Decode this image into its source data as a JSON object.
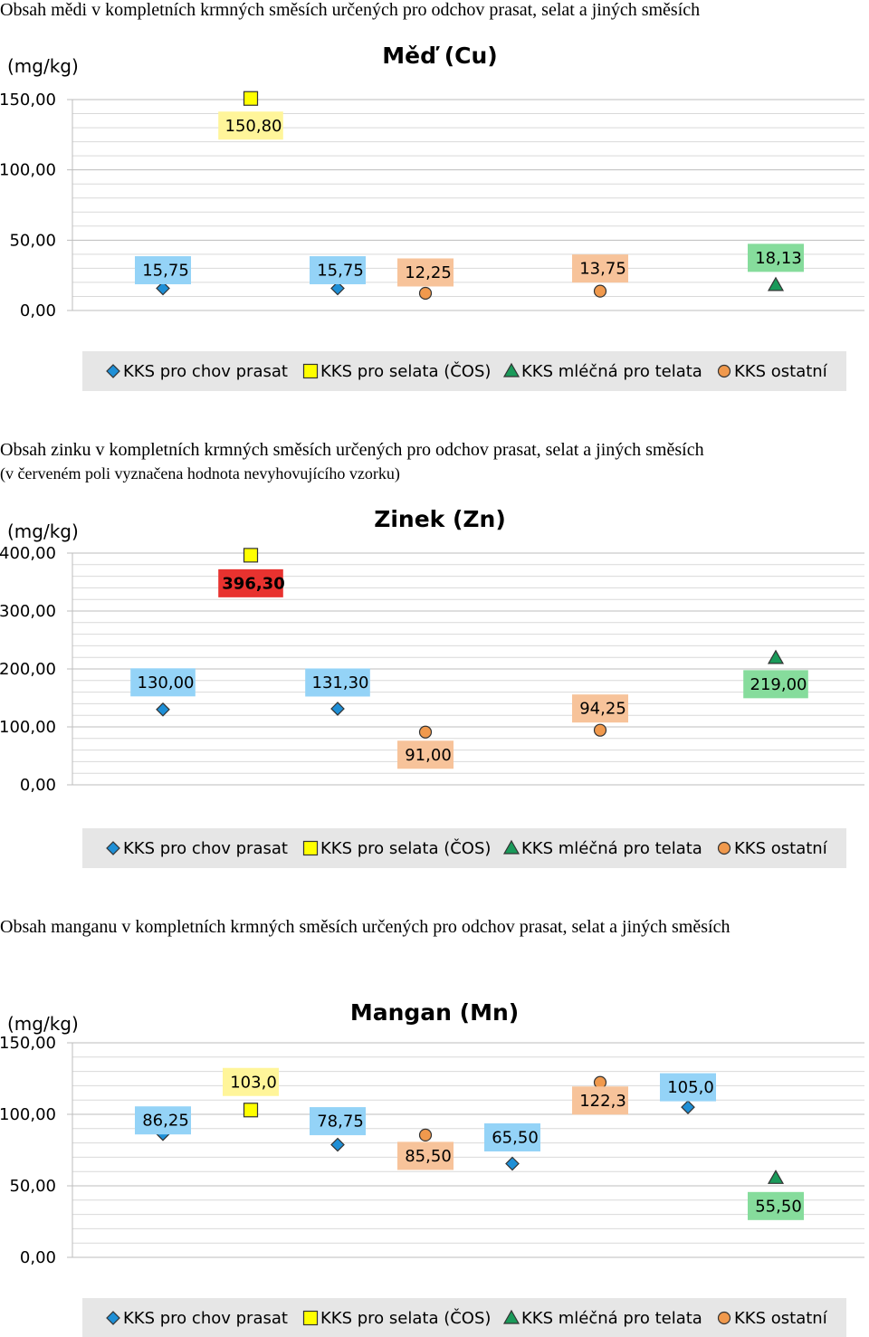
{
  "captions": {
    "cu": "Obsah mědi v kompletních krmných směsích určených pro odchov prasat, selat a jiných směsích",
    "zn": "Obsah zinku v kompletních krmných směsích určených pro odchov prasat, selat a jiných směsích",
    "zn_note": "(v červeném poli vyznačena hodnota nevyhovujícího vzorku)",
    "mn": "Obsah manganu v kompletních krmných směsích určených pro odchov prasat, selat a jiných směsích"
  },
  "colors": {
    "pig": "#1e8fd6",
    "piglet": "#ffff00",
    "calf": "#1a9a5a",
    "other": "#f0994d",
    "label_pig": "#94d3f7",
    "label_piglet": "#fff59a",
    "label_calf": "#86dc9c",
    "label_other": "#f7c39a",
    "label_bad": "#e8322f",
    "legend_bg": "#e6e6e6"
  },
  "legend": [
    {
      "key": "pig",
      "label": "KKS pro chov prasat",
      "marker": "diamond"
    },
    {
      "key": "piglet",
      "label": "KKS pro selata (ČOS)",
      "marker": "square"
    },
    {
      "key": "calf",
      "label": "KKS mléčná pro telata",
      "marker": "triangle"
    },
    {
      "key": "other",
      "label": "KKS  ostatní",
      "marker": "circle"
    }
  ],
  "chart_data": [
    {
      "id": "cu",
      "type": "scatter",
      "title": "Měď (Cu)",
      "ylabel": "(mg/kg)",
      "ylim": [
        0,
        150
      ],
      "yticks": [
        "0,00",
        "50,00",
        "100,00",
        "150,00"
      ],
      "points": [
        {
          "series": "pig",
          "x": 1,
          "y": 15.75,
          "label": "15,75"
        },
        {
          "series": "piglet",
          "x": 2,
          "y": 150.8,
          "label": "150,80"
        },
        {
          "series": "pig",
          "x": 3,
          "y": 15.75,
          "label": "15,75"
        },
        {
          "series": "other",
          "x": 4,
          "y": 12.25,
          "label": "12,25"
        },
        {
          "series": "other",
          "x": 6,
          "y": 13.75,
          "label": "13,75"
        },
        {
          "series": "calf",
          "x": 8,
          "y": 18.13,
          "label": "18,13"
        }
      ]
    },
    {
      "id": "zn",
      "type": "scatter",
      "title": "Zinek (Zn)",
      "ylabel": "(mg/kg)",
      "ylim": [
        0,
        400
      ],
      "yticks": [
        "0,00",
        "100,00",
        "200,00",
        "300,00",
        "400,00"
      ],
      "points": [
        {
          "series": "pig",
          "x": 1,
          "y": 130,
          "label": "130,00"
        },
        {
          "series": "piglet",
          "x": 2,
          "y": 396.3,
          "label": "396,30",
          "bad": true
        },
        {
          "series": "pig",
          "x": 3,
          "y": 131.3,
          "label": "131,30"
        },
        {
          "series": "other",
          "x": 4,
          "y": 91,
          "label": "91,00"
        },
        {
          "series": "other",
          "x": 6,
          "y": 94.25,
          "label": "94,25"
        },
        {
          "series": "calf",
          "x": 8,
          "y": 219,
          "label": "219,00"
        }
      ]
    },
    {
      "id": "mn",
      "type": "scatter",
      "title": "Mangan (Mn)",
      "ylabel": "(mg/kg)",
      "ylim": [
        0,
        150
      ],
      "yticks": [
        "0,00",
        "50,00",
        "100,00",
        "150,00"
      ],
      "points": [
        {
          "series": "pig",
          "x": 1,
          "y": 86.25,
          "label": "86,25"
        },
        {
          "series": "piglet",
          "x": 2,
          "y": 103.0,
          "label": "103,0"
        },
        {
          "series": "pig",
          "x": 3,
          "y": 78.75,
          "label": "78,75"
        },
        {
          "series": "other",
          "x": 4,
          "y": 85.5,
          "label": "85,50"
        },
        {
          "series": "pig",
          "x": 5,
          "y": 65.5,
          "label": "65,50"
        },
        {
          "series": "other",
          "x": 6,
          "y": 122.3,
          "label": "122,3"
        },
        {
          "series": "pig",
          "x": 7,
          "y": 105.0,
          "label": "105,0"
        },
        {
          "series": "calf",
          "x": 8,
          "y": 55.5,
          "label": "55,50"
        }
      ]
    }
  ]
}
